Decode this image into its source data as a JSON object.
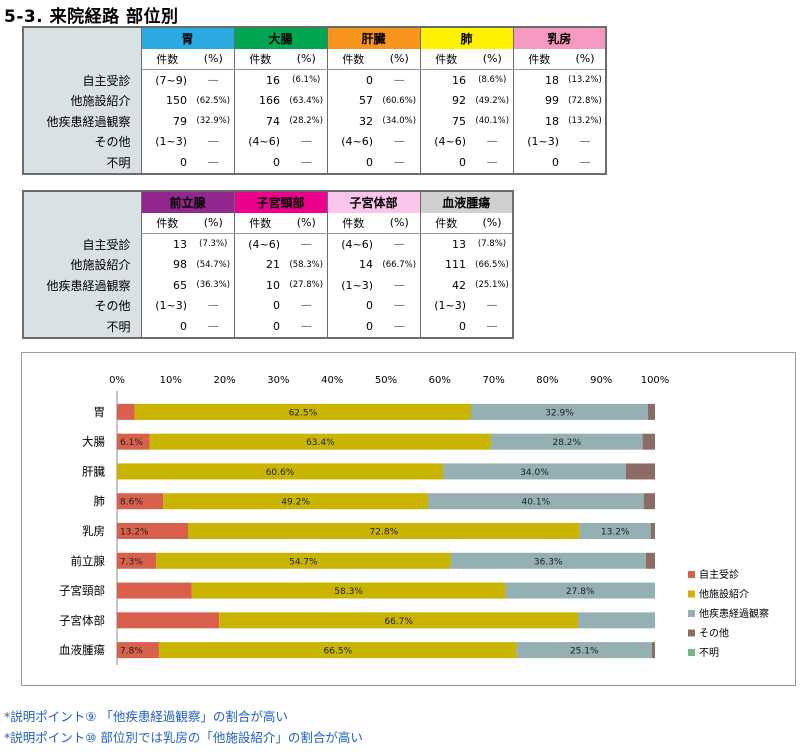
{
  "heading": "5-3.  来院経路  部位別",
  "tables": [
    {
      "sites": [
        {
          "name": "胃",
          "color": "#29abe2"
        },
        {
          "name": "大腸",
          "color": "#00a651"
        },
        {
          "name": "肝臓",
          "color": "#f7941d"
        },
        {
          "name": "肺",
          "color": "#fff200"
        },
        {
          "name": "乳房",
          "color": "#f49ac1"
        }
      ],
      "count_label": "件数",
      "pct_label": "(%)",
      "rows": [
        {
          "label": "自主受診",
          "cells": [
            [
              "(7~9)",
              "―"
            ],
            [
              "16",
              "(6.1%)"
            ],
            [
              "0",
              "―"
            ],
            [
              "16",
              "(8.6%)"
            ],
            [
              "18",
              "(13.2%)"
            ]
          ]
        },
        {
          "label": "他施設紹介",
          "cells": [
            [
              "150",
              "(62.5%)"
            ],
            [
              "166",
              "(63.4%)"
            ],
            [
              "57",
              "(60.6%)"
            ],
            [
              "92",
              "(49.2%)"
            ],
            [
              "99",
              "(72.8%)"
            ]
          ]
        },
        {
          "label": "他疾患経過観察",
          "cells": [
            [
              "79",
              "(32.9%)"
            ],
            [
              "74",
              "(28.2%)"
            ],
            [
              "32",
              "(34.0%)"
            ],
            [
              "75",
              "(40.1%)"
            ],
            [
              "18",
              "(13.2%)"
            ]
          ]
        },
        {
          "label": "その他",
          "cells": [
            [
              "(1~3)",
              "―"
            ],
            [
              "(4~6)",
              "―"
            ],
            [
              "(4~6)",
              "―"
            ],
            [
              "(4~6)",
              "―"
            ],
            [
              "(1~3)",
              "―"
            ]
          ]
        },
        {
          "label": "不明",
          "cells": [
            [
              "0",
              "―"
            ],
            [
              "0",
              "―"
            ],
            [
              "0",
              "―"
            ],
            [
              "0",
              "―"
            ],
            [
              "0",
              "―"
            ]
          ]
        }
      ]
    },
    {
      "sites": [
        {
          "name": "前立腺",
          "color": "#92278f"
        },
        {
          "name": "子宮頸部",
          "color": "#ec008c"
        },
        {
          "name": "子宮体部",
          "color": "#f9c5ea"
        },
        {
          "name": "血液腫瘍",
          "color": "#d0d0d0"
        }
      ],
      "count_label": "件数",
      "pct_label": "(%)",
      "rows": [
        {
          "label": "自主受診",
          "cells": [
            [
              "13",
              "(7.3%)"
            ],
            [
              "(4~6)",
              "―"
            ],
            [
              "(4~6)",
              "―"
            ],
            [
              "13",
              "(7.8%)"
            ]
          ]
        },
        {
          "label": "他施設紹介",
          "cells": [
            [
              "98",
              "(54.7%)"
            ],
            [
              "21",
              "(58.3%)"
            ],
            [
              "14",
              "(66.7%)"
            ],
            [
              "111",
              "(66.5%)"
            ]
          ]
        },
        {
          "label": "他疾患経過観察",
          "cells": [
            [
              "65",
              "(36.3%)"
            ],
            [
              "10",
              "(27.8%)"
            ],
            [
              "(1~3)",
              "―"
            ],
            [
              "42",
              "(25.1%)"
            ]
          ]
        },
        {
          "label": "その他",
          "cells": [
            [
              "(1~3)",
              "―"
            ],
            [
              "0",
              "―"
            ],
            [
              "0",
              "―"
            ],
            [
              "(1~3)",
              "―"
            ]
          ]
        },
        {
          "label": "不明",
          "cells": [
            [
              "0",
              "―"
            ],
            [
              "0",
              "―"
            ],
            [
              "0",
              "―"
            ],
            [
              "0",
              "―"
            ]
          ]
        }
      ]
    }
  ],
  "chart_data": {
    "type": "bar",
    "orientation": "horizontal",
    "stacked": "percent",
    "categories": [
      "胃",
      "大腸",
      "肝臓",
      "肺",
      "乳房",
      "前立腺",
      "子宮頸部",
      "子宮体部",
      "血液腫瘍"
    ],
    "x_ticks": [
      "0%",
      "10%",
      "20%",
      "30%",
      "40%",
      "50%",
      "60%",
      "70%",
      "80%",
      "90%",
      "100%"
    ],
    "xlim": [
      0,
      100
    ],
    "legend_position": "right",
    "grid": false,
    "series": [
      {
        "name": "自主受診",
        "color": "#d9604c",
        "values": [
          3.3,
          6.1,
          0,
          8.6,
          13.2,
          7.3,
          13.9,
          19.0,
          7.8
        ],
        "labels": [
          "",
          "6.1%",
          "",
          "8.6%",
          "13.2%",
          "7.3%",
          "",
          "",
          "7.8%"
        ]
      },
      {
        "name": "他施設紹介",
        "color": "#c9b400",
        "values": [
          62.5,
          63.4,
          60.6,
          49.2,
          72.8,
          54.7,
          58.3,
          66.7,
          66.5
        ],
        "labels": [
          "62.5%",
          "63.4%",
          "60.6%",
          "49.2%",
          "72.8%",
          "54.7%",
          "58.3%",
          "66.7%",
          "66.5%"
        ]
      },
      {
        "name": "他疾患経過観察",
        "color": "#94b0b3",
        "values": [
          32.9,
          28.2,
          34.0,
          40.1,
          13.2,
          36.3,
          27.8,
          14.3,
          25.1
        ],
        "labels": [
          "32.9%",
          "28.2%",
          "34.0%",
          "40.1%",
          "13.2%",
          "36.3%",
          "27.8%",
          "",
          "25.1%"
        ]
      },
      {
        "name": "その他",
        "color": "#8c6d66",
        "values": [
          1.3,
          2.3,
          5.4,
          2.1,
          0.8,
          1.7,
          0,
          0,
          0.6
        ],
        "labels": [
          "",
          "",
          "",
          "",
          "",
          "",
          "",
          "",
          ""
        ]
      },
      {
        "name": "不明",
        "color": "#7fb07f",
        "values": [
          0,
          0,
          0,
          0,
          0,
          0,
          0,
          0,
          0
        ],
        "labels": [
          "",
          "",
          "",
          "",
          "",
          "",
          "",
          "",
          ""
        ]
      }
    ]
  },
  "notes": [
    "*説明ポイント⑨ 「他疾患経過観察」の割合が高い",
    "*説明ポイント⑩ 部位別では乳房の「他施設紹介」の割合が高い"
  ]
}
